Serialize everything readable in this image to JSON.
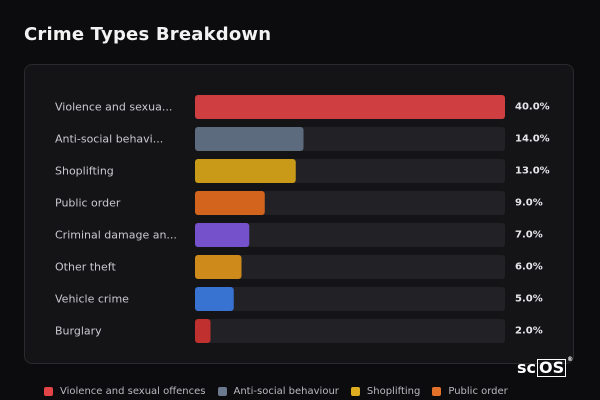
{
  "header": {
    "title": "Crime Types Breakdown"
  },
  "chart_data": {
    "type": "bar",
    "orientation": "horizontal",
    "title": "Crime Types Breakdown",
    "categories": [
      "Violence and sexua...",
      "Anti-social behavi...",
      "Shoplifting",
      "Public order",
      "Criminal damage an...",
      "Other theft",
      "Vehicle crime",
      "Burglary"
    ],
    "values": [
      40.0,
      14.0,
      13.0,
      9.0,
      7.0,
      6.0,
      5.0,
      2.0
    ],
    "value_labels": [
      "40.0%",
      "14.0%",
      "13.0%",
      "9.0%",
      "7.0%",
      "6.0%",
      "5.0%",
      "2.0%"
    ],
    "colors": [
      "#cf3f42",
      "#5d6b7e",
      "#c89a18",
      "#d2641e",
      "#7552cc",
      "#cf8a1c",
      "#3873d2",
      "#c0302e"
    ],
    "xlim": [
      0,
      40
    ],
    "track_color": "#222226",
    "grid": false
  },
  "legend": {
    "items": [
      {
        "label": "Violence and sexual offences",
        "color": "#e24447"
      },
      {
        "label": "Anti-social behaviour",
        "color": "#6b7a8e"
      },
      {
        "label": "Shoplifting",
        "color": "#e0ad20"
      },
      {
        "label": "Public order",
        "color": "#e4712a"
      }
    ]
  },
  "logo": {
    "text_plain": "sc",
    "text_boxed": "OS",
    "mark": "®"
  }
}
